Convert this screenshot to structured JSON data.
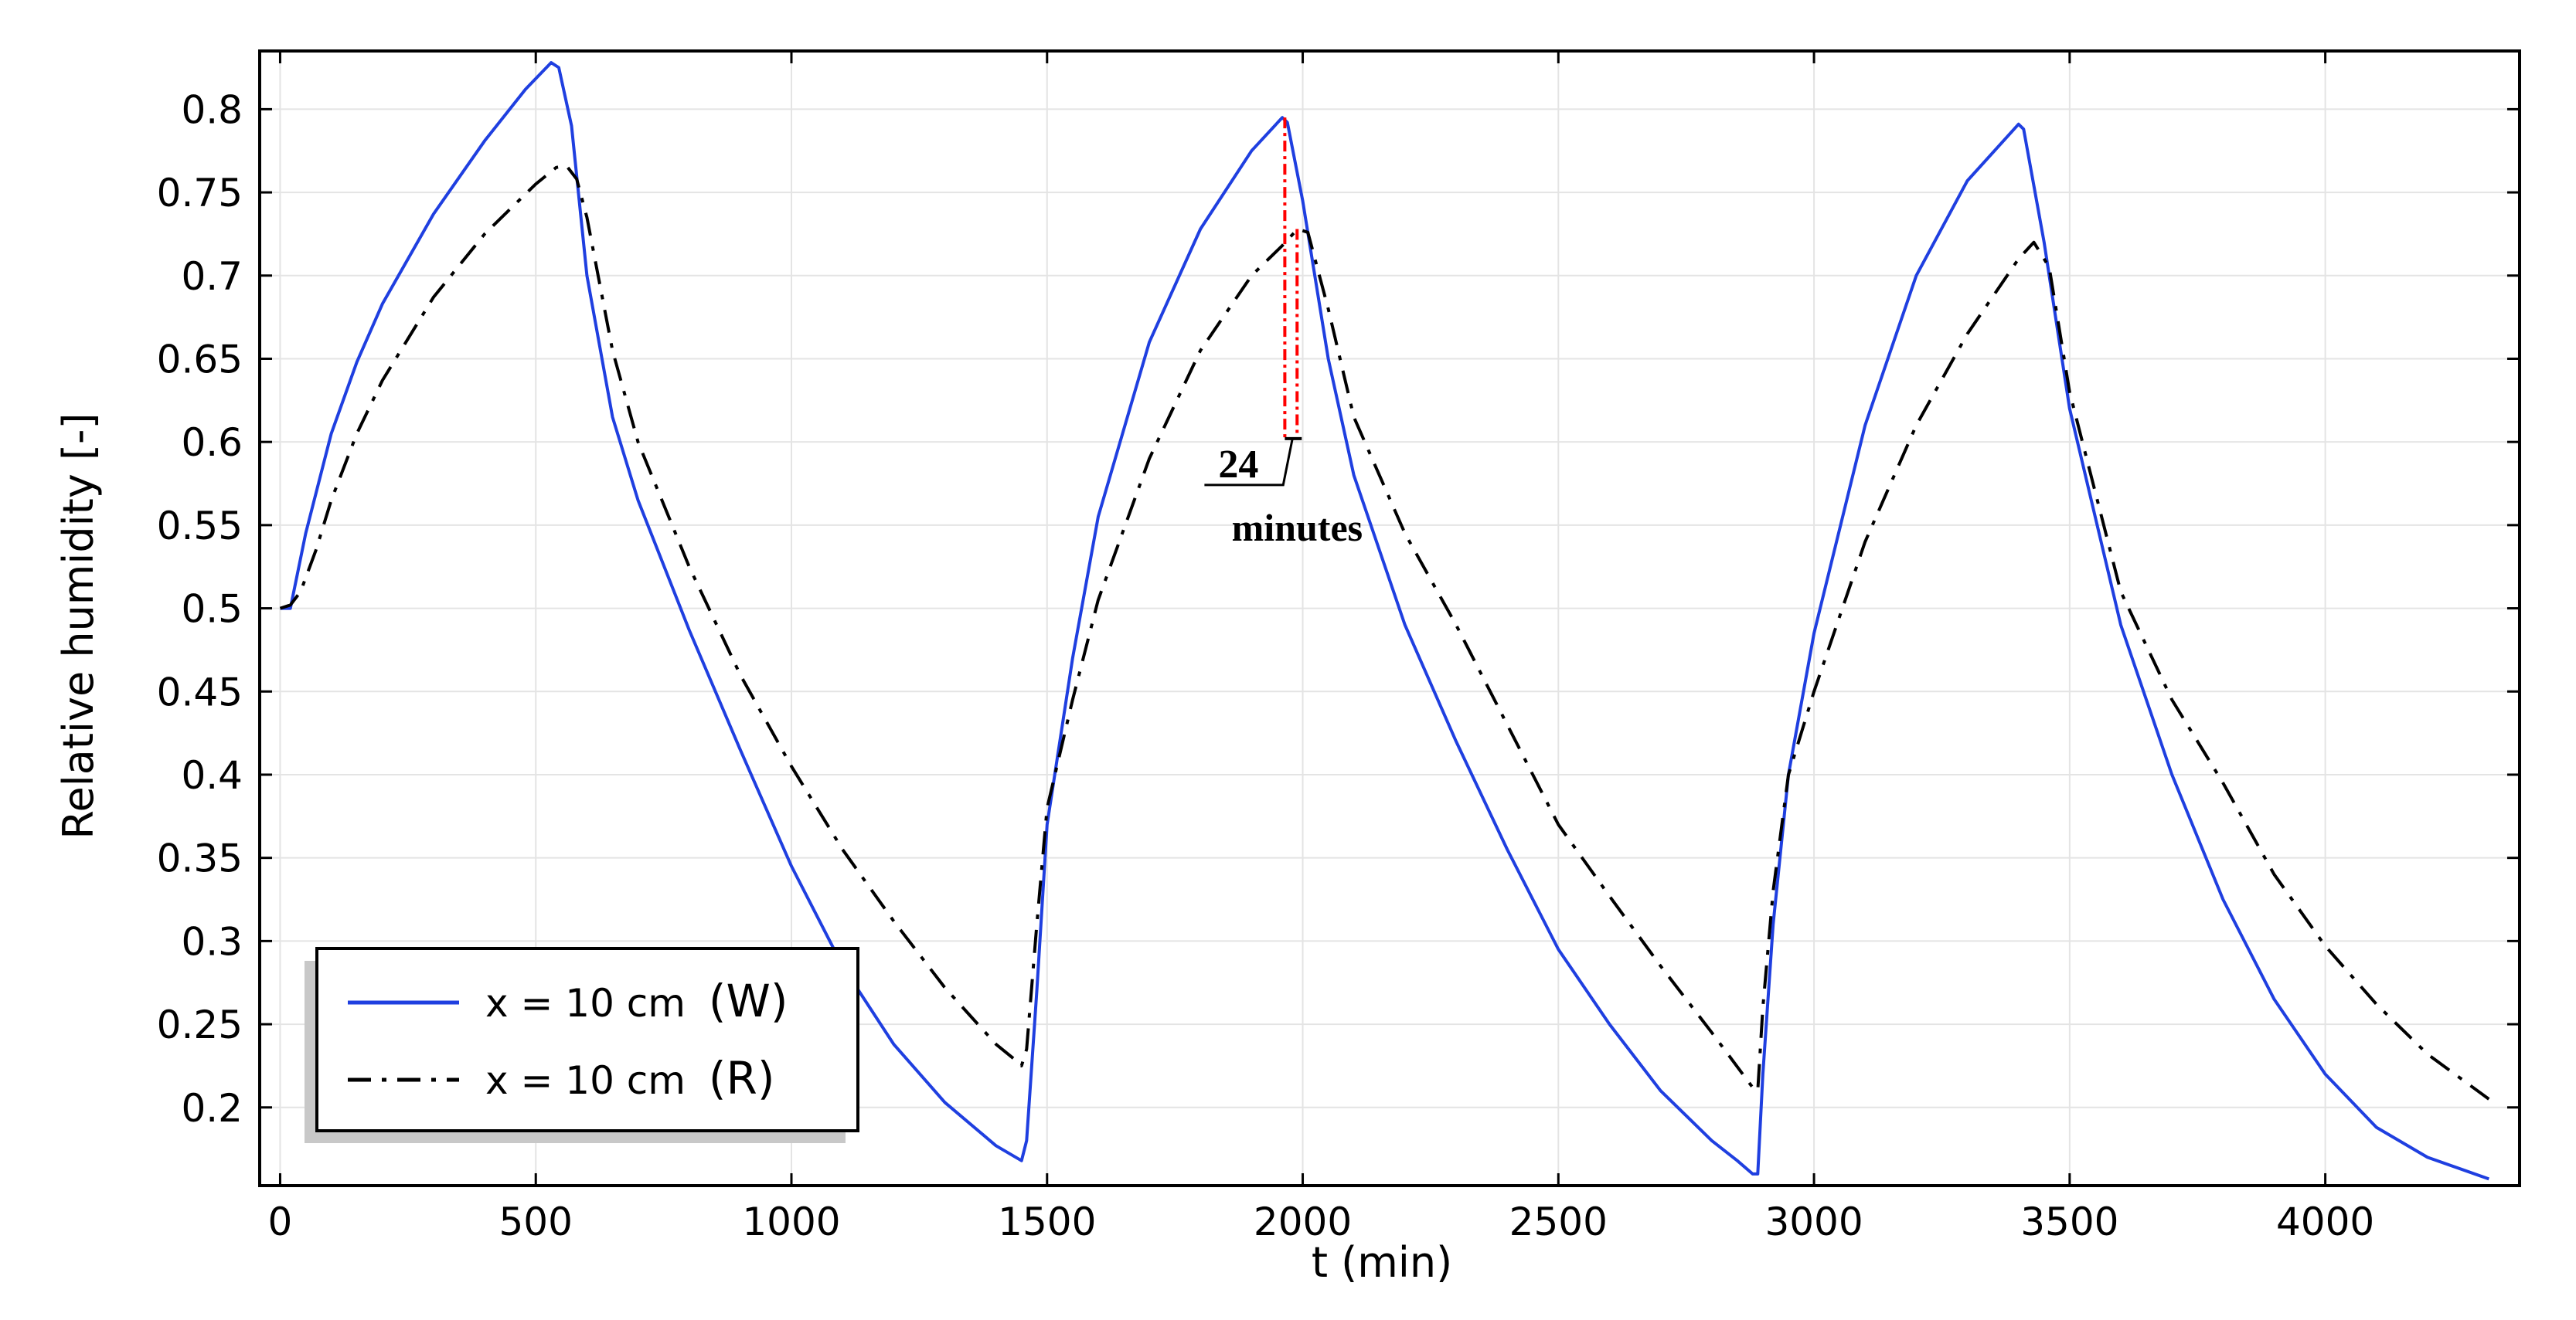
{
  "chart_data": {
    "type": "line",
    "title": "",
    "xlabel": "t (min)",
    "ylabel": "Relative humidity [-]",
    "xlim": [
      -40,
      4380
    ],
    "ylim": [
      0.153,
      0.835
    ],
    "xticks": [
      "0",
      "500",
      "1000",
      "1500",
      "2000",
      "2500",
      "3000",
      "3500",
      "4000"
    ],
    "yticks": [
      "0.2",
      "0.25",
      "0.3",
      "0.35",
      "0.4",
      "0.45",
      "0.5",
      "0.55",
      "0.6",
      "0.65",
      "0.7",
      "0.75",
      "0.8"
    ],
    "grid": true,
    "legend_position": "bottom-left",
    "series": [
      {
        "name": "x = 10 cm (W)",
        "legend_prefix": "x = 10 cm",
        "legend_tag": "(W)",
        "color": "#1f3fe0",
        "dash": "solid",
        "points": [
          [
            0,
            0.5
          ],
          [
            20,
            0.5
          ],
          [
            50,
            0.545
          ],
          [
            100,
            0.605
          ],
          [
            150,
            0.648
          ],
          [
            200,
            0.683
          ],
          [
            300,
            0.737
          ],
          [
            400,
            0.781
          ],
          [
            480,
            0.812
          ],
          [
            530,
            0.828
          ],
          [
            545,
            0.825
          ],
          [
            570,
            0.79
          ],
          [
            600,
            0.7
          ],
          [
            650,
            0.615
          ],
          [
            700,
            0.565
          ],
          [
            800,
            0.487
          ],
          [
            900,
            0.415
          ],
          [
            1000,
            0.345
          ],
          [
            1100,
            0.285
          ],
          [
            1200,
            0.238
          ],
          [
            1300,
            0.203
          ],
          [
            1400,
            0.177
          ],
          [
            1450,
            0.168
          ],
          [
            1460,
            0.18
          ],
          [
            1480,
            0.27
          ],
          [
            1500,
            0.37
          ],
          [
            1550,
            0.47
          ],
          [
            1600,
            0.555
          ],
          [
            1700,
            0.66
          ],
          [
            1800,
            0.728
          ],
          [
            1900,
            0.775
          ],
          [
            1960,
            0.795
          ],
          [
            1970,
            0.792
          ],
          [
            2000,
            0.745
          ],
          [
            2050,
            0.65
          ],
          [
            2100,
            0.58
          ],
          [
            2200,
            0.49
          ],
          [
            2300,
            0.42
          ],
          [
            2400,
            0.355
          ],
          [
            2500,
            0.295
          ],
          [
            2600,
            0.25
          ],
          [
            2700,
            0.21
          ],
          [
            2800,
            0.18
          ],
          [
            2850,
            0.168
          ],
          [
            2880,
            0.16
          ],
          [
            2890,
            0.16
          ],
          [
            2900,
            0.22
          ],
          [
            2920,
            0.31
          ],
          [
            2950,
            0.4
          ],
          [
            3000,
            0.485
          ],
          [
            3100,
            0.61
          ],
          [
            3200,
            0.7
          ],
          [
            3300,
            0.757
          ],
          [
            3400,
            0.791
          ],
          [
            3410,
            0.788
          ],
          [
            3450,
            0.72
          ],
          [
            3500,
            0.62
          ],
          [
            3600,
            0.49
          ],
          [
            3700,
            0.4
          ],
          [
            3800,
            0.325
          ],
          [
            3900,
            0.265
          ],
          [
            4000,
            0.22
          ],
          [
            4100,
            0.188
          ],
          [
            4200,
            0.17
          ],
          [
            4320,
            0.157
          ]
        ]
      },
      {
        "name": "x = 10 cm (R)",
        "legend_prefix": "x = 10 cm",
        "legend_tag": "(R)",
        "color": "#000000",
        "dash": "dashdot",
        "points": [
          [
            0,
            0.5
          ],
          [
            20,
            0.502
          ],
          [
            40,
            0.51
          ],
          [
            70,
            0.535
          ],
          [
            100,
            0.565
          ],
          [
            150,
            0.605
          ],
          [
            200,
            0.637
          ],
          [
            300,
            0.687
          ],
          [
            400,
            0.725
          ],
          [
            500,
            0.755
          ],
          [
            540,
            0.765
          ],
          [
            560,
            0.766
          ],
          [
            580,
            0.758
          ],
          [
            600,
            0.735
          ],
          [
            650,
            0.655
          ],
          [
            700,
            0.6
          ],
          [
            800,
            0.525
          ],
          [
            900,
            0.46
          ],
          [
            1000,
            0.405
          ],
          [
            1100,
            0.355
          ],
          [
            1200,
            0.312
          ],
          [
            1300,
            0.272
          ],
          [
            1400,
            0.238
          ],
          [
            1440,
            0.228
          ],
          [
            1450,
            0.225
          ],
          [
            1460,
            0.235
          ],
          [
            1480,
            0.31
          ],
          [
            1500,
            0.38
          ],
          [
            1550,
            0.445
          ],
          [
            1600,
            0.505
          ],
          [
            1700,
            0.59
          ],
          [
            1800,
            0.655
          ],
          [
            1900,
            0.7
          ],
          [
            1960,
            0.718
          ],
          [
            1990,
            0.728
          ],
          [
            2010,
            0.726
          ],
          [
            2050,
            0.68
          ],
          [
            2100,
            0.615
          ],
          [
            2200,
            0.545
          ],
          [
            2300,
            0.49
          ],
          [
            2400,
            0.43
          ],
          [
            2500,
            0.37
          ],
          [
            2600,
            0.327
          ],
          [
            2700,
            0.285
          ],
          [
            2800,
            0.245
          ],
          [
            2880,
            0.212
          ],
          [
            2890,
            0.21
          ],
          [
            2900,
            0.26
          ],
          [
            2920,
            0.33
          ],
          [
            2950,
            0.4
          ],
          [
            3000,
            0.45
          ],
          [
            3100,
            0.54
          ],
          [
            3200,
            0.61
          ],
          [
            3300,
            0.665
          ],
          [
            3400,
            0.71
          ],
          [
            3430,
            0.72
          ],
          [
            3460,
            0.705
          ],
          [
            3500,
            0.63
          ],
          [
            3600,
            0.51
          ],
          [
            3700,
            0.445
          ],
          [
            3800,
            0.395
          ],
          [
            3900,
            0.34
          ],
          [
            4000,
            0.297
          ],
          [
            4100,
            0.262
          ],
          [
            4200,
            0.232
          ],
          [
            4320,
            0.205
          ]
        ]
      }
    ],
    "annotation": {
      "value": "24",
      "unit": "minutes",
      "t_start": 1965,
      "t_end": 1989,
      "y_bottom": 0.602,
      "color": "#ff0000"
    }
  }
}
